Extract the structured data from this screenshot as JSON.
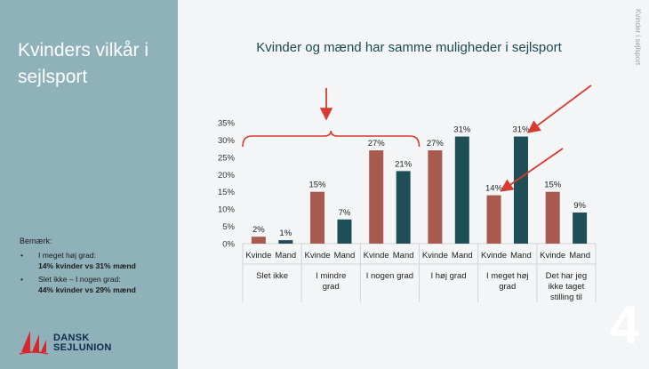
{
  "slide": {
    "title": "Kvinders vilkår i sejlsport",
    "vertical_label": "Kvinder i sejlsport",
    "page_number": "4"
  },
  "note": {
    "heading": "Bemærk:",
    "items": [
      {
        "text": "I meget høj grad:",
        "bold": "14% kvinder vs 31% mænd"
      },
      {
        "text": "Slet ikke – I nogen grad:",
        "bold": "44% kvinder vs 29% mænd"
      }
    ]
  },
  "logo": {
    "line1": "DANSK",
    "line2": "SEJLUNION"
  },
  "colors": {
    "sidebar": "#8fb1b9",
    "kvinde": "#a85a4e",
    "mand": "#1e4e56",
    "annotation": "#d73a31"
  },
  "chart_data": {
    "type": "bar",
    "title": "Kvinder og mænd har samme muligheder i sejlsport",
    "categories": [
      "Slet ikke",
      "I mindre grad",
      "I nogen grad",
      "I høj grad",
      "I meget høj grad",
      "Det har jeg ikke taget stilling til"
    ],
    "sub_labels": [
      "Kvinde",
      "Mand"
    ],
    "series": [
      {
        "name": "Kvinde",
        "values": [
          2,
          15,
          27,
          27,
          14,
          15
        ]
      },
      {
        "name": "Mand",
        "values": [
          1,
          7,
          21,
          31,
          31,
          9
        ]
      }
    ],
    "y_ticks": [
      "0%",
      "5%",
      "10%",
      "15%",
      "20%",
      "25%",
      "30%",
      "35%"
    ],
    "ylim": [
      0,
      35
    ],
    "unit": "%",
    "grid": false,
    "legend": "none"
  }
}
